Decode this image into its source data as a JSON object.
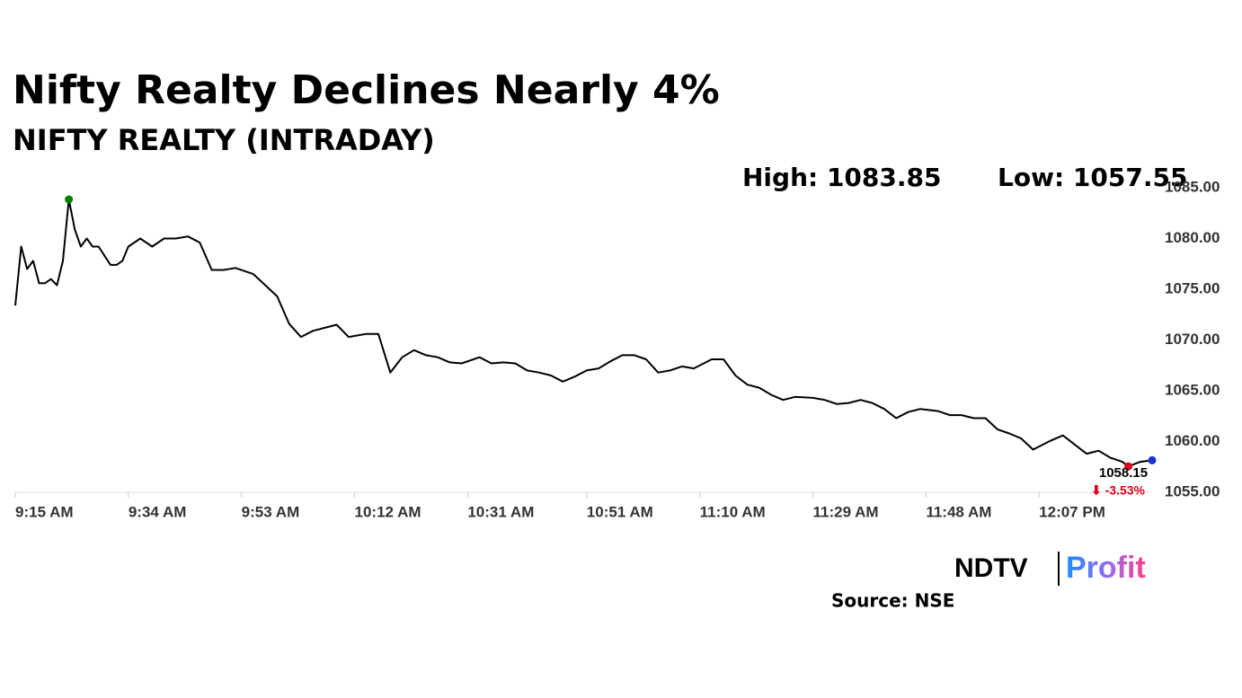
{
  "chart_data": {
    "type": "line",
    "title": "Nifty Realty Declines Nearly 4%",
    "subtitle": "NIFTY REALTY (INTRADAY)",
    "annotations": {
      "high": "High: 1083.85",
      "low": "Low: 1057.55",
      "last": "1058.15",
      "change": "⬇ -3.53%"
    },
    "source": "Source: NSE",
    "logo": {
      "left": "NDTV",
      "right": "Profit"
    },
    "x": [
      "9:15 AM",
      "9:16 AM",
      "9:17 AM",
      "9:18 AM",
      "9:19 AM",
      "9:20 AM",
      "9:21 AM",
      "9:22 AM",
      "9:23 AM",
      "9:24 AM",
      "9:25 AM",
      "9:26 AM",
      "9:27 AM",
      "9:28 AM",
      "9:29 AM",
      "9:30 AM",
      "9:31 AM",
      "9:32 AM",
      "9:33 AM",
      "9:34 AM",
      "9:36 AM",
      "9:38 AM",
      "9:40 AM",
      "9:42 AM",
      "9:44 AM",
      "9:46 AM",
      "9:48 AM",
      "9:50 AM",
      "9:52 AM",
      "9:55 AM",
      "9:57 AM",
      "9:59 AM",
      "10:01 AM",
      "10:03 AM",
      "10:05 AM",
      "10:07 AM",
      "10:09 AM",
      "10:11 AM",
      "10:14 AM",
      "10:16 AM",
      "10:18 AM",
      "10:20 AM",
      "10:22 AM",
      "10:24 AM",
      "10:26 AM",
      "10:28 AM",
      "10:30 AM",
      "10:33 AM",
      "10:35 AM",
      "10:37 AM",
      "10:39 AM",
      "10:41 AM",
      "10:43 AM",
      "10:45 AM",
      "10:47 AM",
      "10:49 AM",
      "10:51 AM",
      "10:53 AM",
      "10:55 AM",
      "10:57 AM",
      "10:59 AM",
      "11:01 AM",
      "11:03 AM",
      "11:05 AM",
      "11:07 AM",
      "11:09 AM",
      "11:12 AM",
      "11:14 AM",
      "11:16 AM",
      "11:18 AM",
      "11:20 AM",
      "11:22 AM",
      "11:24 AM",
      "11:26 AM",
      "11:29 AM",
      "11:31 AM",
      "11:33 AM",
      "11:35 AM",
      "11:37 AM",
      "11:39 AM",
      "11:41 AM",
      "11:43 AM",
      "11:45 AM",
      "11:47 AM",
      "11:50 AM",
      "11:52 AM",
      "11:54 AM",
      "11:56 AM",
      "11:58 AM",
      "12:00 PM",
      "12:02 PM",
      "12:04 PM",
      "12:06 PM",
      "12:09 PM",
      "12:11 PM",
      "12:13 PM",
      "12:15 PM",
      "12:17 PM",
      "12:19 PM",
      "12:21 PM",
      "12:22 PM",
      "12:24 PM",
      "12:26 PM"
    ],
    "series": [
      {
        "color": "#000000",
        "values": [
          1073.4,
          1079.2,
          1077,
          1077.8,
          1075.6,
          1075.6,
          1076,
          1075.4,
          1077.8,
          1083.85,
          1080.9,
          1079.2,
          1080,
          1079.2,
          1079.2,
          1078.3,
          1077.4,
          1077.4,
          1077.8,
          1079.2,
          1080,
          1079.2,
          1080,
          1080,
          1080.2,
          1079.6,
          1076.9,
          1076.9,
          1077.1,
          1076.5,
          1075.4,
          1074.3,
          1071.6,
          1070.3,
          1070.9,
          1071.2,
          1071.5,
          1070.3,
          1070.6,
          1070.6,
          1066.8,
          1068.3,
          1069,
          1068.5,
          1068.3,
          1067.8,
          1067.7,
          1068.3,
          1067.7,
          1067.8,
          1067.7,
          1067,
          1066.8,
          1066.5,
          1065.9,
          1066.4,
          1067,
          1067.2,
          1067.9,
          1068.5,
          1068.5,
          1068.1,
          1066.8,
          1067,
          1067.4,
          1067.2,
          1068.1,
          1068.1,
          1066.5,
          1065.6,
          1065.3,
          1064.6,
          1064.1,
          1064.4,
          1064.3,
          1064.1,
          1063.7,
          1063.8,
          1064.1,
          1063.8,
          1063.2,
          1062.3,
          1062.9,
          1063.2,
          1063,
          1062.6,
          1062.6,
          1062.3,
          1062.3,
          1061.2,
          1060.8,
          1060.3,
          1059.2,
          1060.1,
          1060.6,
          1059.7,
          1058.8,
          1059.1,
          1058.4,
          1058,
          1057.55,
          1058,
          1058.15
        ]
      }
    ],
    "marker_colors": {
      "high": "#008000",
      "low": "#e0001b",
      "last": "#1a2fd6"
    },
    "xlim": [
      "9:15 AM",
      "12:26 PM"
    ],
    "xticks": [
      "9:15 AM",
      "9:34 AM",
      "9:53 AM",
      "10:12 AM",
      "10:31 AM",
      "10:51 AM",
      "11:10 AM",
      "11:29 AM",
      "11:48 AM",
      "12:07 PM"
    ],
    "ylim": [
      1055,
      1085
    ],
    "yticks": [
      {
        "value": 1085,
        "label": "1085.00"
      },
      {
        "value": 1080,
        "label": "1080.00"
      },
      {
        "value": 1075,
        "label": "1075.00"
      },
      {
        "value": 1070,
        "label": "1070.00"
      },
      {
        "value": 1065,
        "label": "1065.00"
      },
      {
        "value": 1060,
        "label": "1060.00"
      },
      {
        "value": 1055,
        "label": "1055.00"
      }
    ],
    "grid": false
  }
}
